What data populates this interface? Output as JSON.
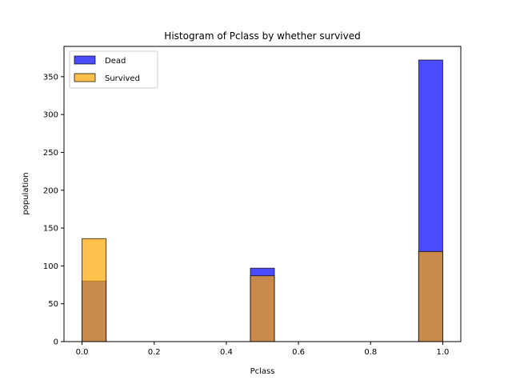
{
  "chart_data": {
    "type": "bar",
    "title": "Histogram of Pclass by whether survived",
    "xlabel": "Pclass",
    "ylabel": "population",
    "xlim": [
      -0.05,
      1.05
    ],
    "ylim": [
      0,
      390
    ],
    "xticks": [
      0.0,
      0.2,
      0.4,
      0.6,
      0.8,
      1.0
    ],
    "xtick_labels": [
      "0.0",
      "0.2",
      "0.4",
      "0.6",
      "0.8",
      "1.0"
    ],
    "yticks": [
      0,
      50,
      100,
      150,
      200,
      250,
      300,
      350
    ],
    "ytick_labels": [
      "0",
      "50",
      "100",
      "150",
      "200",
      "250",
      "300",
      "350"
    ],
    "legend_position": "upper left",
    "grid": false,
    "bins": [
      {
        "x0": 0.0,
        "x1": 0.0667
      },
      {
        "x0": 0.4667,
        "x1": 0.5333
      },
      {
        "x0": 0.9333,
        "x1": 1.0
      }
    ],
    "series": [
      {
        "name": "Dead",
        "color": "#0000ff",
        "opacity": 0.7,
        "values": [
          80,
          97,
          372
        ]
      },
      {
        "name": "Survived",
        "color": "#ffa500",
        "opacity": 0.7,
        "values": [
          136,
          87,
          119
        ]
      }
    ]
  }
}
